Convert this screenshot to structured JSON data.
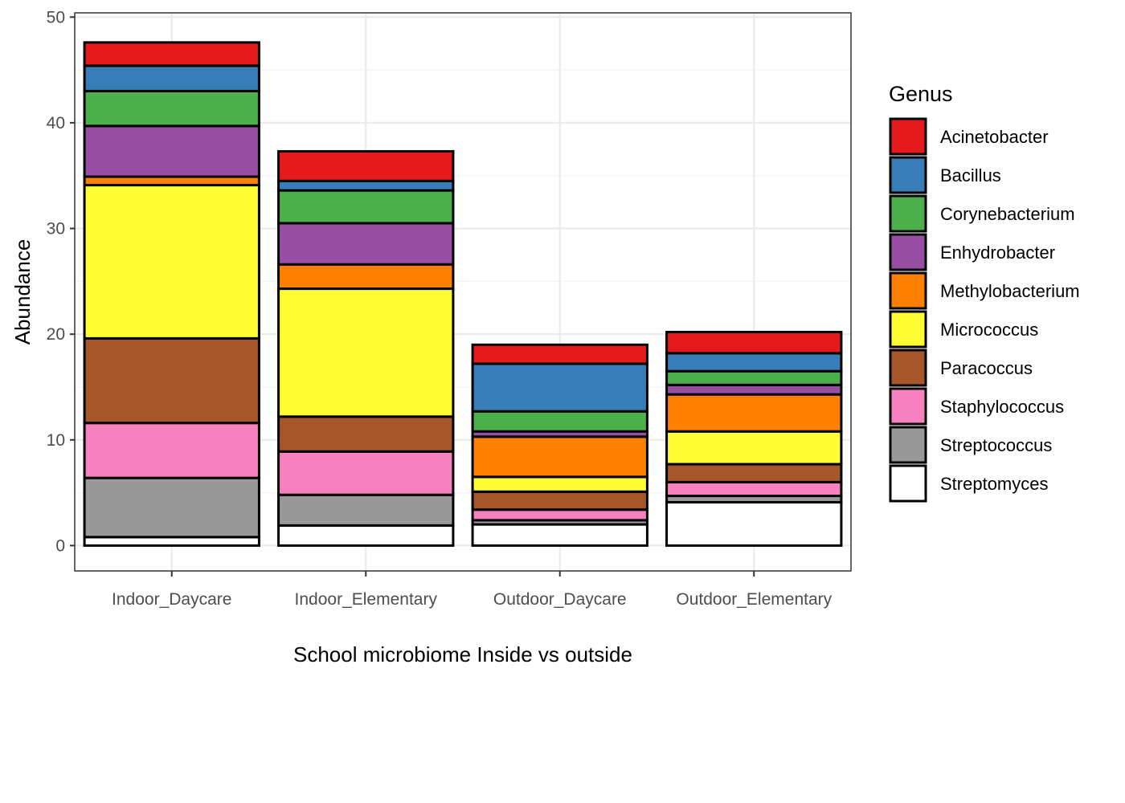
{
  "chart_data": {
    "type": "bar",
    "stacked": true,
    "xlabel": "School microbiome Inside vs outside",
    "ylabel": "Abundance",
    "ylim": [
      -2.4,
      50.4
    ],
    "yticks": [
      0,
      10,
      20,
      30,
      40,
      50
    ],
    "grid": true,
    "legend": {
      "title": "Genus",
      "placement": "right"
    },
    "categories": [
      "Indoor_Daycare",
      "Indoor_Elementary",
      "Outdoor_Daycare",
      "Outdoor_Elementary"
    ],
    "series": [
      {
        "name": "Streptomyces",
        "color": "#FFFFFF",
        "values": [
          0.8,
          1.9,
          2.0,
          4.1
        ]
      },
      {
        "name": "Streptococcus",
        "color": "#999999",
        "values": [
          5.6,
          2.9,
          0.4,
          0.6
        ]
      },
      {
        "name": "Staphylococcus",
        "color": "#F781BF",
        "values": [
          5.2,
          4.1,
          1.0,
          1.3
        ]
      },
      {
        "name": "Paracoccus",
        "color": "#A65628",
        "values": [
          8.0,
          3.3,
          1.7,
          1.7
        ]
      },
      {
        "name": "Micrococcus",
        "color": "#FFFF33",
        "values": [
          14.5,
          12.1,
          1.4,
          3.1
        ]
      },
      {
        "name": "Methylobacterium",
        "color": "#FF7F00",
        "values": [
          0.8,
          2.3,
          3.8,
          3.5
        ]
      },
      {
        "name": "Enhydrobacter",
        "color": "#984EA3",
        "values": [
          4.8,
          3.9,
          0.5,
          0.9
        ]
      },
      {
        "name": "Corynebacterium",
        "color": "#4DAF4A",
        "values": [
          3.3,
          3.1,
          1.9,
          1.3
        ]
      },
      {
        "name": "Bacillus",
        "color": "#377EB8",
        "values": [
          2.4,
          0.9,
          4.5,
          1.7
        ]
      },
      {
        "name": "Acinetobacter",
        "color": "#E41A1C",
        "values": [
          2.2,
          2.8,
          1.8,
          2.0
        ]
      }
    ]
  }
}
